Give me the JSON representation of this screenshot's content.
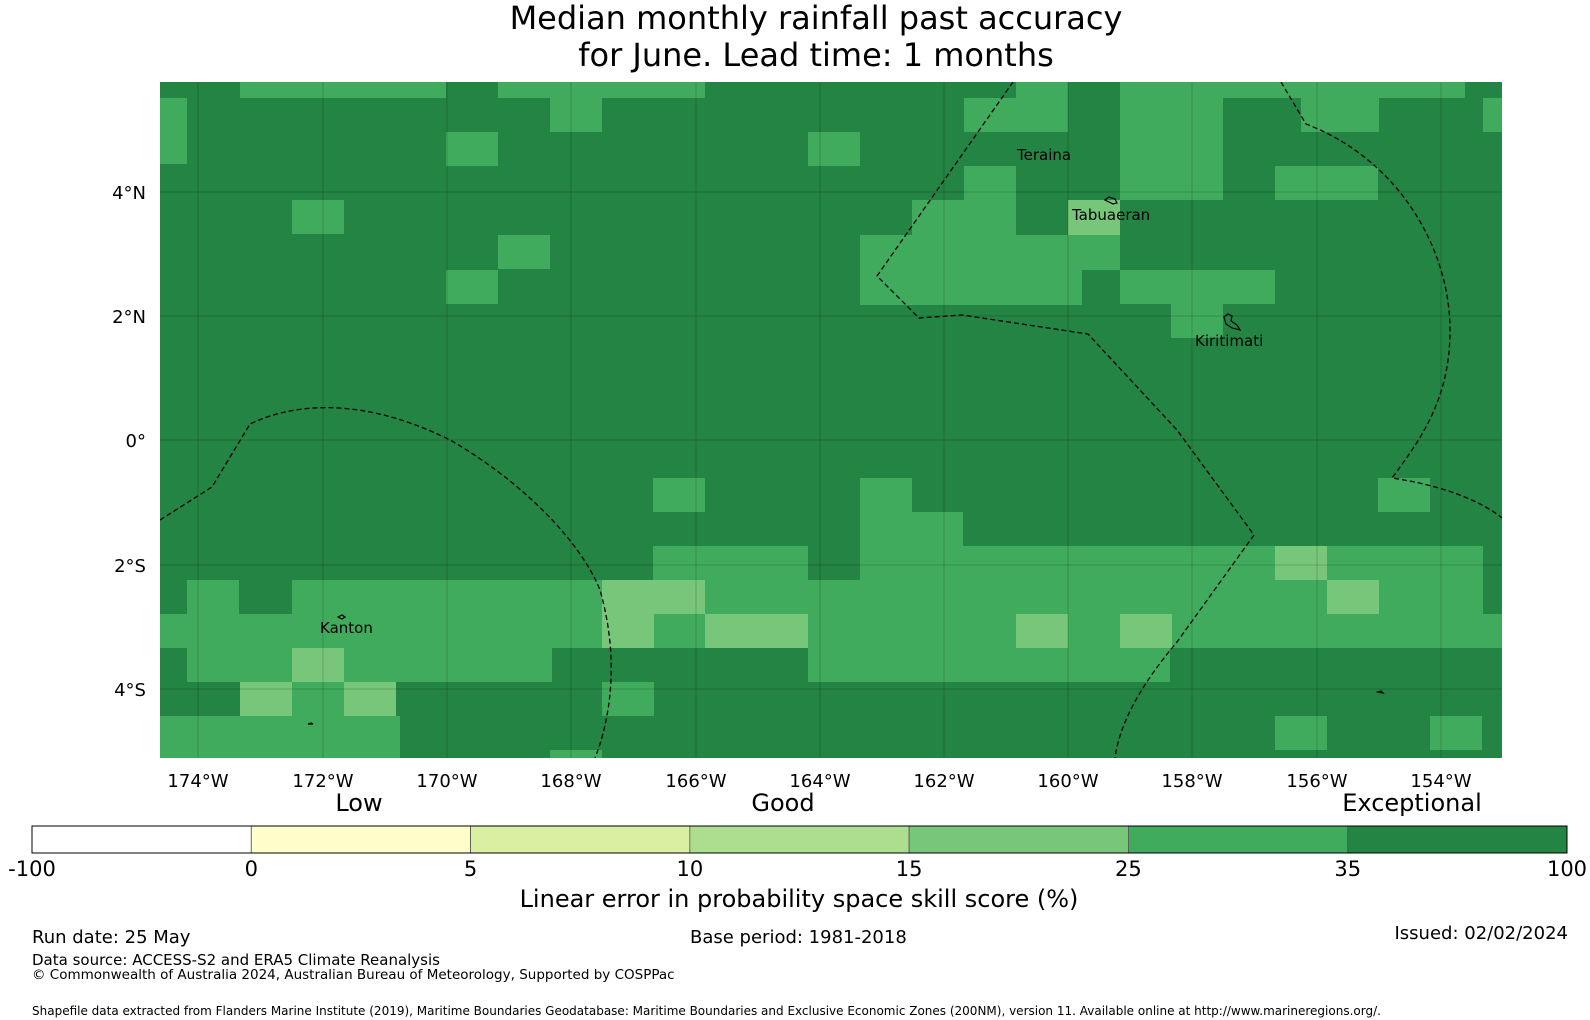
{
  "title_line1": "Median monthly rainfall past accuracy",
  "title_line2": "for June. Lead time: 1 months",
  "map": {
    "lon_labels": [
      "174°W",
      "172°W",
      "170°W",
      "168°W",
      "166°W",
      "164°W",
      "162°W",
      "160°W",
      "158°W",
      "156°W",
      "154°W"
    ],
    "lat_labels": [
      "4°N",
      "2°N",
      "0°",
      "2°S",
      "4°S"
    ],
    "places": [
      "Teraina",
      "Tabuaeran",
      "Kiritimati",
      "Kanton"
    ]
  },
  "legend": {
    "categories": [
      "Low",
      "Good",
      "Exceptional"
    ],
    "boundaries": [
      "-100",
      "0",
      "5",
      "10",
      "15",
      "25",
      "35",
      "100"
    ],
    "colors": [
      "#ffffff",
      "#ffffcc",
      "#d9f0a3",
      "#addd8e",
      "#78c679",
      "#41ab5d",
      "#238443"
    ],
    "label": "Linear error in probability space skill score (%)"
  },
  "footer": {
    "run_date": "Run date: 25 May",
    "base_period": "Base period: 1981-2018",
    "issued": "Issued: 02/02/2024",
    "data_source": "Data source: ACCESS-S2 and ERA5 Climate Reanalysis",
    "copyright": "© Commonwealth of Australia 2024, Australian Bureau of Meteorology, Supported by COSPPac",
    "shapefile": "Shapefile data extracted from Flanders Marine Institute (2019), Maritime Boundaries Geodatabase: Maritime Boundaries and Exclusive Economic Zones (200NM), version 11. Available online at http://www.marineregions.org/."
  }
}
